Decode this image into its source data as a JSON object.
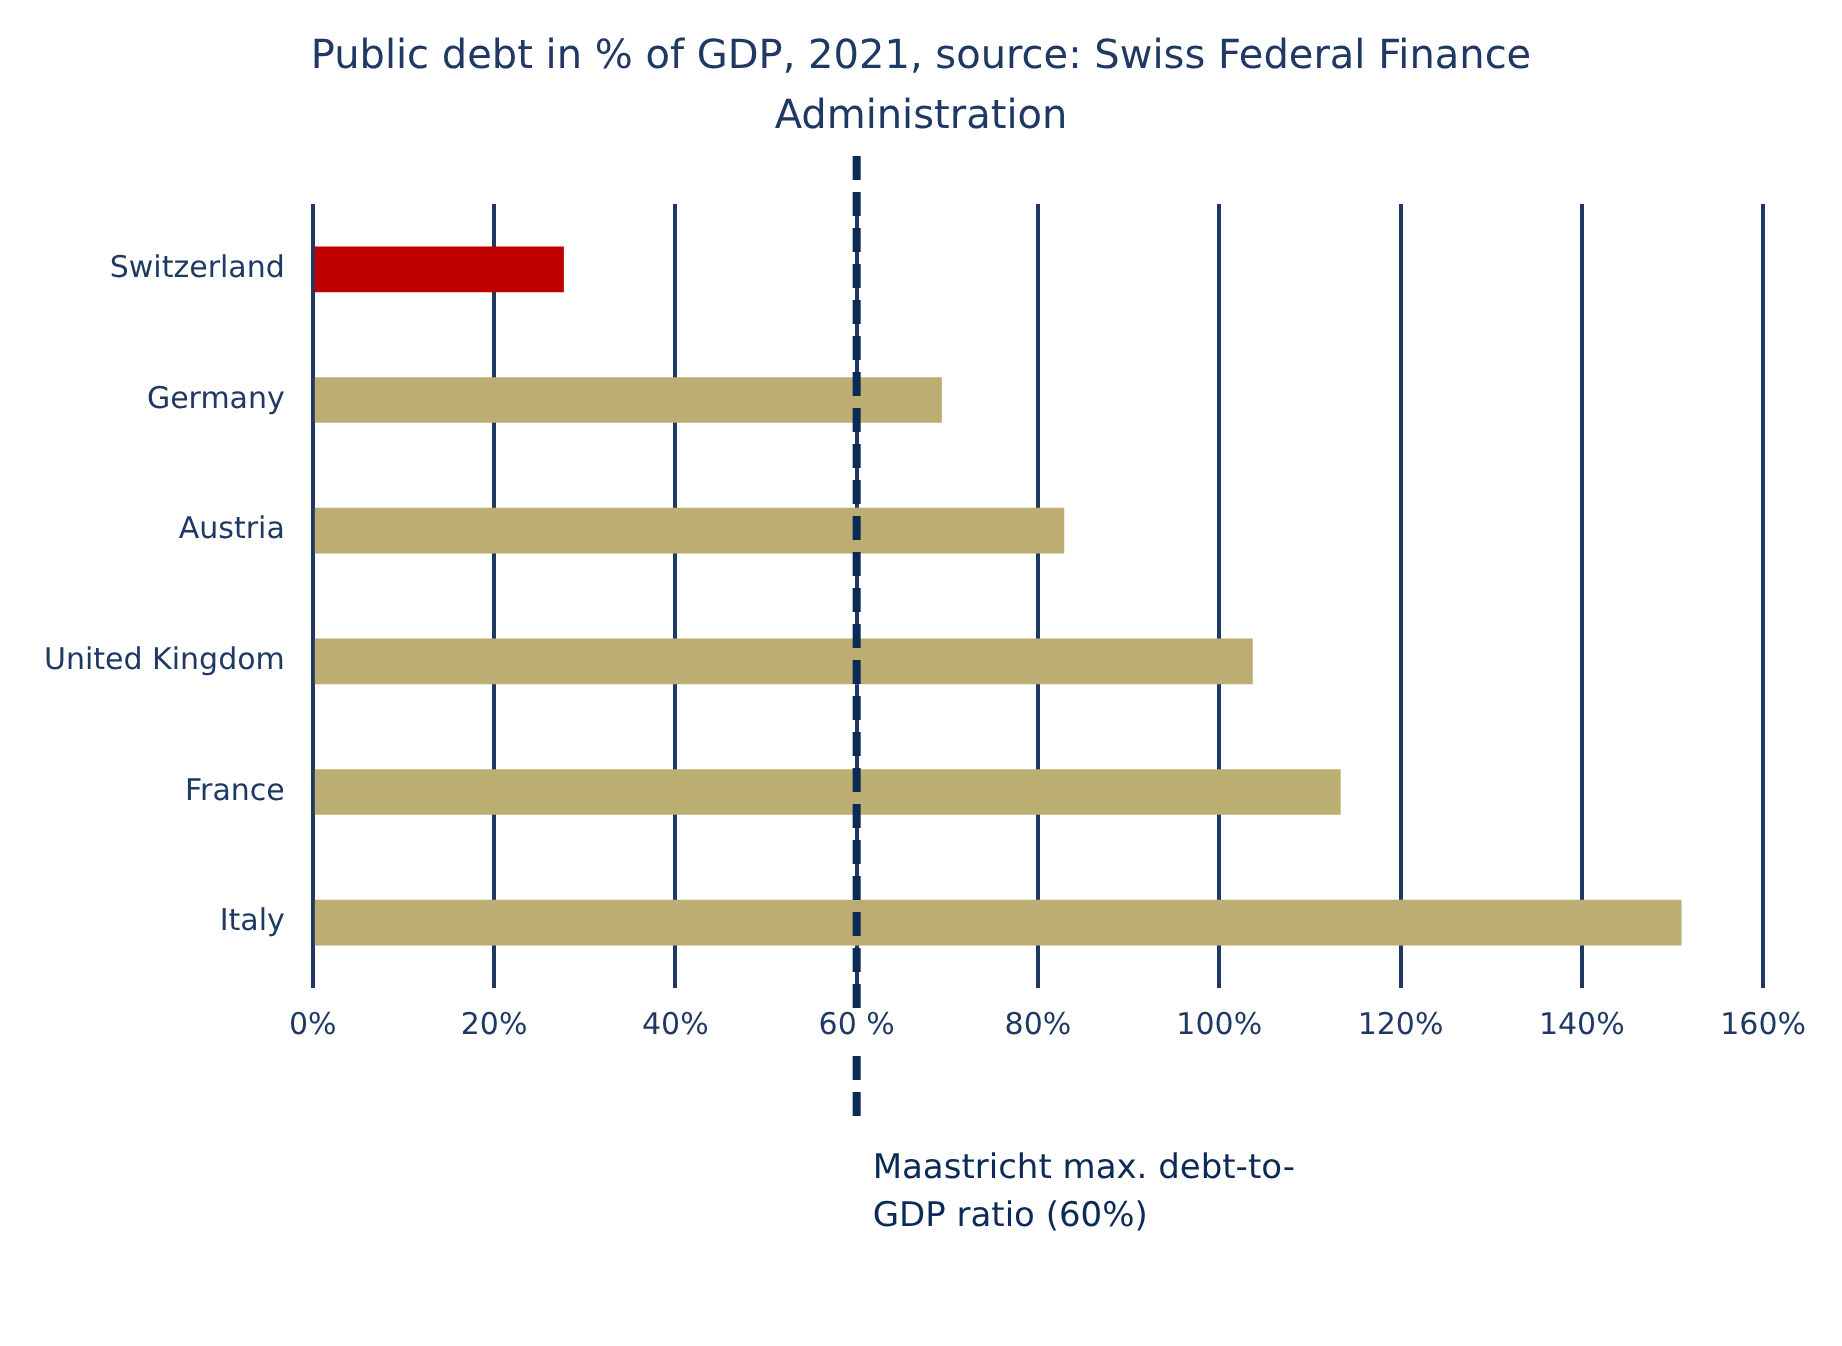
{
  "chart_data": {
    "type": "bar",
    "orientation": "horizontal",
    "title": "Public debt in % of GDP, 2021, source: Swiss Federal Finance Administration",
    "categories": [
      "Switzerland",
      "Germany",
      "Austria",
      "United Kingdom",
      "France",
      "Italy"
    ],
    "values": [
      27.7,
      69.4,
      82.9,
      103.7,
      113.4,
      151.0
    ],
    "colors": [
      "#c00000",
      "#bcae72",
      "#bcae72",
      "#bcae72",
      "#bcae72",
      "#bcae72"
    ],
    "xlim": [
      0,
      160
    ],
    "xticks": [
      {
        "value": 0,
        "label": "0%"
      },
      {
        "value": 20,
        "label": "20%"
      },
      {
        "value": 40,
        "label": "40%"
      },
      {
        "value": 60,
        "label": "60 %"
      },
      {
        "value": 80,
        "label": "80%"
      },
      {
        "value": 100,
        "label": "100%"
      },
      {
        "value": 120,
        "label": "120%"
      },
      {
        "value": 140,
        "label": "140%"
      },
      {
        "value": 160,
        "label": "160%"
      }
    ],
    "grid": "x",
    "ref_lines": [
      {
        "axis": "x",
        "value": 60,
        "label": "Maastricht max. debt-to-GDP ratio (60%)",
        "color": "#0b2a55",
        "line_style": "dashed"
      }
    ]
  }
}
